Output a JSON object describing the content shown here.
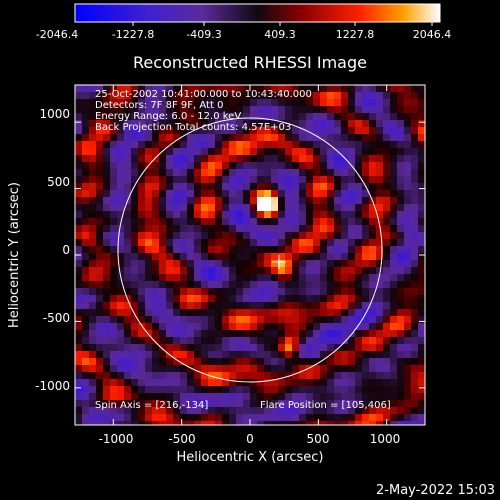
{
  "colorbar": {
    "tick_labels": [
      "-2046.4",
      "-1227.8",
      "-409.3",
      "409.3",
      "1227.8",
      "2046.4"
    ],
    "range": [
      -2046.4,
      2046.4
    ]
  },
  "plot": {
    "title": "Reconstructed RHESSI Image",
    "xlabel": "Heliocentric X (arcsec)",
    "ylabel": "Heliocentric Y (arcsec)",
    "x_ticks": [
      "-1000",
      "-500",
      "0",
      "500",
      "1000"
    ],
    "y_ticks": [
      "1000",
      "500",
      "0",
      "-500",
      "-1000"
    ],
    "info_lines": [
      "25-Oct-2002 10:41:00.000 to 10:43:40.000",
      "Detectors: 7F 8F 9F, Att 0",
      "Energy Range: 6.0 - 12.0 keV",
      "Back Projection    Total counts: 4.57E+03"
    ],
    "spin_axis": "Spin Axis = [216,-134]",
    "flare_position": "Flare Position = [105,406]"
  },
  "timestamp": "2-May-2022 15:03",
  "colors": {
    "background": "#000000",
    "foreground": "#ffffff",
    "colormap": [
      "#0000ff",
      "#5a2ab0",
      "#3a1a5a",
      "#000000",
      "#8a0000",
      "#ff2000",
      "#ff9000",
      "#ffffff"
    ]
  },
  "chart_data": {
    "type": "heatmap",
    "title": "Reconstructed RHESSI Image",
    "xlabel": "Heliocentric X (arcsec)",
    "ylabel": "Heliocentric Y (arcsec)",
    "xlim": [
      -1280,
      1280
    ],
    "ylim": [
      -1280,
      1280
    ],
    "value_range": [
      -2046.4,
      2046.4
    ],
    "solar_limb_radius_arcsec": 960,
    "solar_limb_center": [
      0,
      0
    ],
    "flare_position": [
      105,
      406
    ],
    "spin_axis": [
      216,
      -134
    ],
    "bright_sources": [
      {
        "x": 105,
        "y": 406,
        "intensity": 2046.4
      },
      {
        "x": 270,
        "y": -660,
        "intensity": 1700
      },
      {
        "x": 220,
        "y": -90,
        "intensity": 900
      }
    ]
  }
}
